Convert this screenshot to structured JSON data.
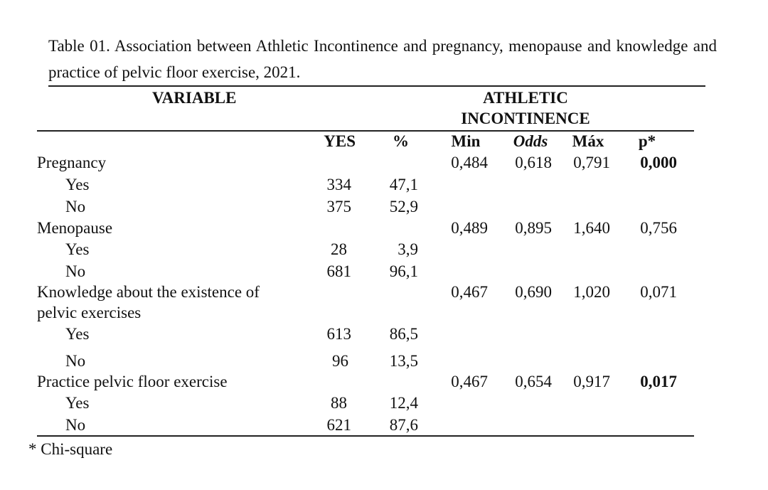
{
  "caption": "Table 01. Association between Athletic Incontinence and pregnancy, menopause and knowledge and practice of pelvic floor exercise, 2021.",
  "header": {
    "variable": "VARIABLE",
    "group_line1": "ATHLETIC",
    "group_line2": "INCONTINENCE",
    "yes": "YES",
    "pct": "%",
    "min": "Min",
    "odds": "Odds",
    "max": "Máx",
    "p": "p*"
  },
  "rows": [
    {
      "label": "Pregnancy",
      "min": "0,484",
      "odds": "0,618",
      "max": "0,791",
      "p": "0,000"
    },
    {
      "label": "Yes",
      "yes": "334",
      "pct": "47,1"
    },
    {
      "label": "No",
      "yes": "375",
      "pct": "52,9"
    },
    {
      "label": "Menopause",
      "min": "0,489",
      "odds": "0,895",
      "max": "1,640",
      "p": "0,756"
    },
    {
      "label": "Yes",
      "yes": "28",
      "pct": "3,9"
    },
    {
      "label": "No",
      "yes": "681",
      "pct": "96,1"
    },
    {
      "label": "Knowledge about the existence of",
      "label2": "pelvic exercises",
      "min": "0,467",
      "odds": "0,690",
      "max": "1,020",
      "p": "0,071"
    },
    {
      "label": "Yes",
      "yes": "613",
      "pct": "86,5"
    },
    {
      "label": "No",
      "yes": "96",
      "pct": "13,5"
    },
    {
      "label": "Practice pelvic floor exercise",
      "min": "0,467",
      "odds": "0,654",
      "max": "0,917",
      "p": "0,017"
    },
    {
      "label": "Yes",
      "yes": "88",
      "pct": "12,4"
    },
    {
      "label": "No",
      "yes": "621",
      "pct": "87,6"
    }
  ],
  "footnote": "* Chi-square"
}
